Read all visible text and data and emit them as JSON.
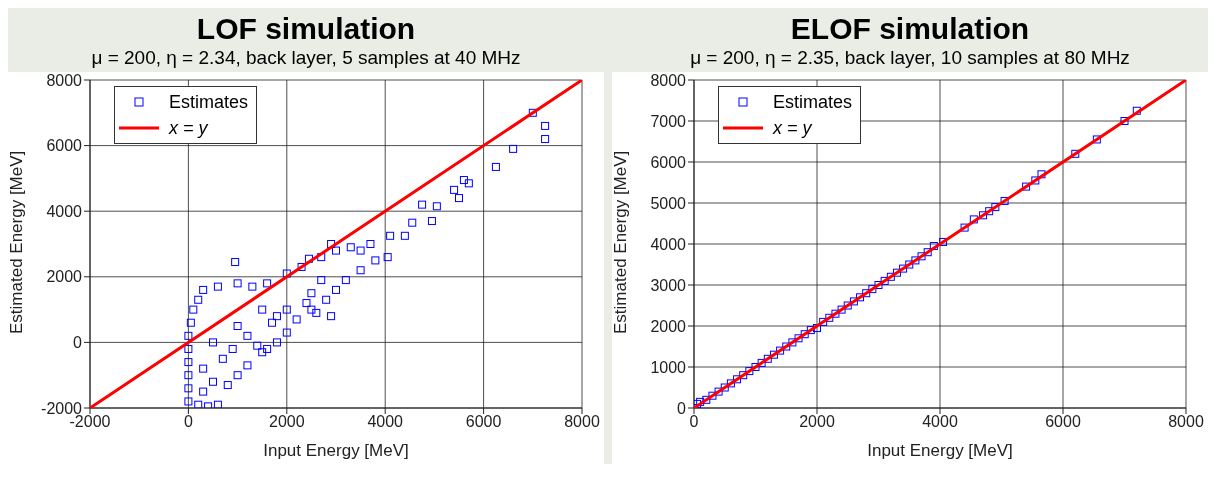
{
  "chart_data": [
    {
      "type": "scatter",
      "title": "LOF simulation",
      "subtitle": "μ = 200, η = 2.34, back layer, 5 samples at 40 MHz",
      "xlabel": "Input Energy [MeV]",
      "ylabel": "Estimated Energy [MeV]",
      "xlim": [
        -2000,
        8000
      ],
      "xticks": [
        -2000,
        0,
        2000,
        4000,
        6000,
        8000
      ],
      "ylim": [
        -2000,
        8000
      ],
      "yticks": [
        -2000,
        0,
        2000,
        4000,
        6000,
        8000
      ],
      "grid": true,
      "legend": "top left",
      "marker": "square",
      "series": [
        {
          "name": "Estimates",
          "color": "#0000ff",
          "x": [
            0,
            0,
            0,
            0,
            0,
            0,
            50,
            100,
            200,
            400,
            600,
            300,
            500,
            800,
            1000,
            1200,
            1500,
            1800,
            2000,
            2200,
            2500,
            2800,
            3000,
            3200,
            3500,
            3800,
            200,
            300,
            600,
            1000,
            1300,
            1600,
            2000,
            2300,
            2700,
            3000,
            3300,
            3500,
            3700,
            500,
            1000,
            1500,
            700,
            1200,
            1800,
            2500,
            300,
            900,
            2000,
            2700,
            1600,
            2900,
            2600,
            2400,
            1700,
            1400,
            950,
            2450,
            2900,
            4050,
            4100,
            4400,
            4550,
            4950,
            4750,
            5050,
            5500,
            5400,
            5600,
            5700,
            6250,
            6600,
            7250,
            7250,
            7000
          ],
          "values": [
            -1800,
            -1400,
            -1000,
            -600,
            -200,
            200,
            600,
            1000,
            -1900,
            -1950,
            -1900,
            -1500,
            -1200,
            -1300,
            -1000,
            -700,
            -300,
            0,
            300,
            700,
            1000,
            1300,
            1600,
            1900,
            2200,
            2500,
            1300,
            1600,
            1700,
            1800,
            1700,
            1800,
            2100,
            2300,
            2600,
            2800,
            2900,
            2800,
            3000,
            0,
            500,
            1000,
            -500,
            200,
            800,
            1500,
            -800,
            -200,
            1000,
            1900,
            -200,
            800,
            900,
            1200,
            600,
            -100,
            2450,
            2550,
            3000,
            2600,
            3250,
            3250,
            3650,
            3700,
            4200,
            4150,
            4400,
            4650,
            4950,
            4850,
            5350,
            5900,
            6200,
            6600,
            7000
          ]
        },
        {
          "name": "x = y",
          "color": "#ff0000",
          "type": "line",
          "marker": "none",
          "x": [
            -2000,
            8000
          ],
          "values": [
            -2000,
            8000
          ]
        }
      ]
    },
    {
      "type": "scatter",
      "title": "ELOF simulation",
      "subtitle": "μ = 200, η = 2.35, back layer, 10 samples at 80 MHz",
      "xlabel": "Input Energy [MeV]",
      "ylabel": "Estimated Energy [MeV]",
      "xlim": [
        0,
        8000
      ],
      "xticks": [
        0,
        2000,
        4000,
        6000,
        8000
      ],
      "ylim": [
        0,
        8000
      ],
      "yticks": [
        0,
        1000,
        2000,
        3000,
        4000,
        5000,
        6000,
        7000,
        8000
      ],
      "grid": true,
      "legend": "top left",
      "marker": "square",
      "series": [
        {
          "name": "Estimates",
          "color": "#0000ff",
          "x": [
            50,
            50,
            100,
            200,
            300,
            400,
            500,
            600,
            700,
            800,
            900,
            1000,
            1100,
            1200,
            1300,
            1400,
            1500,
            1600,
            1700,
            1800,
            1900,
            2000,
            2100,
            2200,
            2300,
            2400,
            2500,
            2600,
            2700,
            2800,
            2900,
            3000,
            3100,
            3200,
            3300,
            3400,
            3500,
            3600,
            3700,
            3800,
            3900,
            4050,
            4400,
            4550,
            4700,
            4800,
            4900,
            5050,
            5400,
            5550,
            5650,
            6200,
            6550,
            7000,
            7200
          ],
          "values": [
            0,
            100,
            150,
            200,
            300,
            400,
            500,
            600,
            700,
            800,
            900,
            1000,
            1100,
            1200,
            1300,
            1400,
            1500,
            1600,
            1700,
            1800,
            1900,
            1950,
            2100,
            2200,
            2300,
            2400,
            2500,
            2600,
            2700,
            2800,
            2900,
            3000,
            3100,
            3200,
            3300,
            3400,
            3500,
            3600,
            3700,
            3800,
            3950,
            4050,
            4400,
            4600,
            4700,
            4800,
            4900,
            5050,
            5400,
            5550,
            5700,
            6200,
            6550,
            7000,
            7250
          ]
        },
        {
          "name": "x = y",
          "color": "#ff0000",
          "type": "line",
          "marker": "none",
          "x": [
            0,
            8000
          ],
          "values": [
            0,
            8000
          ]
        }
      ]
    }
  ]
}
